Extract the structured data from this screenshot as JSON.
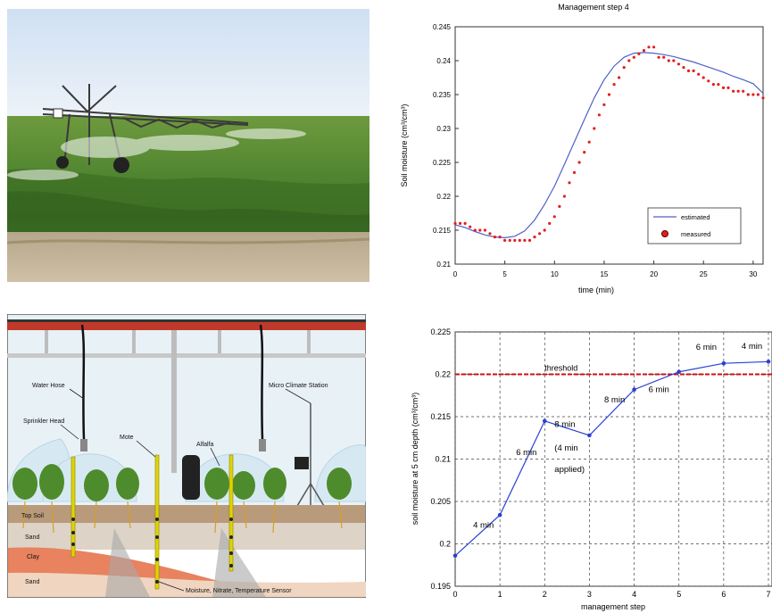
{
  "colors": {
    "estimated_line": "#5060c8",
    "measured_dot": "#e02020",
    "bottom_line": "#2a3fd6",
    "threshold": "#d01010",
    "pipe": "#c0392b",
    "sensor": "#e0d400"
  },
  "photo": {
    "icons": [
      "sky",
      "field-crop",
      "center-pivot-irrigation-machine",
      "water-spray",
      "dirt-ground"
    ]
  },
  "diagram": {
    "labels": {
      "water_hose": "Water Hose",
      "sprinkler_head": "Sprinkler Head",
      "mote": "Mote",
      "alfalfa": "Alfalfa",
      "micro_climate_station": "Micro Climate Station",
      "top_soil": "Top Soil",
      "sand_upper": "Sand",
      "clay": "Clay",
      "sand_lower": "Sand",
      "sensor": "Moisture, Nitrate, Temperature Sensor"
    }
  },
  "chart_data": [
    {
      "type": "scatter",
      "title": "Management step 4",
      "xlabel": "time (min)",
      "ylabel": "Soil moisture (cm³/cm³)",
      "xlim": [
        0,
        31
      ],
      "ylim": [
        0.21,
        0.245
      ],
      "xticks": [
        0,
        5,
        10,
        15,
        20,
        25,
        30
      ],
      "yticks": [
        0.21,
        0.215,
        0.22,
        0.225,
        0.23,
        0.235,
        0.24,
        0.245
      ],
      "grid": false,
      "legend_position": "bottom-right",
      "series": [
        {
          "name": "estimated",
          "kind": "line",
          "x": [
            0,
            1,
            2,
            3,
            4,
            5,
            6,
            7,
            8,
            9,
            10,
            11,
            12,
            13,
            14,
            15,
            16,
            17,
            18,
            19,
            20,
            21,
            22,
            23,
            24,
            25,
            26,
            27,
            28,
            29,
            30,
            31
          ],
          "y": [
            0.2158,
            0.2154,
            0.2148,
            0.2143,
            0.214,
            0.2139,
            0.2141,
            0.2149,
            0.2165,
            0.2188,
            0.2215,
            0.2247,
            0.228,
            0.2313,
            0.2345,
            0.2372,
            0.2392,
            0.2405,
            0.2411,
            0.2412,
            0.2411,
            0.2409,
            0.2406,
            0.2402,
            0.2398,
            0.2393,
            0.2388,
            0.2383,
            0.2377,
            0.2372,
            0.2366,
            0.2352
          ]
        },
        {
          "name": "measured",
          "kind": "scatter",
          "x": [
            0,
            0.5,
            1,
            1.5,
            2,
            2.5,
            3,
            3.5,
            4,
            4.5,
            5,
            5.5,
            6,
            6.5,
            7,
            7.5,
            8,
            8.5,
            9,
            9.5,
            10,
            10.5,
            11,
            11.5,
            12,
            12.5,
            13,
            13.5,
            14,
            14.5,
            15,
            15.5,
            16,
            16.5,
            17,
            17.5,
            18,
            18.5,
            19,
            19.5,
            20,
            20.5,
            21,
            21.5,
            22,
            22.5,
            23,
            23.5,
            24,
            24.5,
            25,
            25.5,
            26,
            26.5,
            27,
            27.5,
            28,
            28.5,
            29,
            29.5,
            30,
            30.5,
            31
          ],
          "y": [
            0.216,
            0.216,
            0.216,
            0.2155,
            0.215,
            0.215,
            0.215,
            0.2145,
            0.214,
            0.214,
            0.2135,
            0.2135,
            0.2135,
            0.2135,
            0.2135,
            0.2135,
            0.214,
            0.2145,
            0.215,
            0.216,
            0.217,
            0.2185,
            0.22,
            0.222,
            0.2235,
            0.225,
            0.2265,
            0.228,
            0.23,
            0.232,
            0.2335,
            0.235,
            0.2365,
            0.2375,
            0.239,
            0.24,
            0.2405,
            0.241,
            0.2415,
            0.242,
            0.242,
            0.2405,
            0.2405,
            0.24,
            0.24,
            0.2395,
            0.239,
            0.2385,
            0.2385,
            0.238,
            0.2375,
            0.237,
            0.2365,
            0.2365,
            0.236,
            0.236,
            0.2355,
            0.2355,
            0.2355,
            0.235,
            0.235,
            0.235,
            0.2345
          ]
        }
      ]
    },
    {
      "type": "line",
      "title": "",
      "xlabel": "management step",
      "ylabel": "soil moisture at 5 cm depth (cm³/cm³)",
      "xlim": [
        0,
        7
      ],
      "ylim": [
        0.195,
        0.225
      ],
      "xticks": [
        0,
        1,
        2,
        3,
        4,
        5,
        6,
        7
      ],
      "yticks": [
        0.195,
        0.2,
        0.205,
        0.21,
        0.215,
        0.22,
        0.225
      ],
      "grid": true,
      "series": [
        {
          "name": "",
          "x": [
            0,
            1,
            2,
            3,
            4,
            5,
            6,
            7
          ],
          "y": [
            0.1986,
            0.2034,
            0.2145,
            0.2128,
            0.2182,
            0.2203,
            0.2213,
            0.2215
          ]
        }
      ],
      "threshold": {
        "value": 0.22,
        "label": "threshold"
      },
      "annotations": [
        {
          "text": "4 min",
          "x": 0.4,
          "y": 0.2019
        },
        {
          "text": "6 min",
          "x": 1.36,
          "y": 0.2105
        },
        {
          "text": "8 min",
          "x": 2.22,
          "y": 0.2138
        },
        {
          "text": "(4 min",
          "x": 2.22,
          "y": 0.211
        },
        {
          "text": "applied)",
          "x": 2.22,
          "y": 0.2085
        },
        {
          "text": "8 min",
          "x": 3.33,
          "y": 0.2167
        },
        {
          "text": "6 min",
          "x": 4.32,
          "y": 0.2179
        },
        {
          "text": "6 min",
          "x": 5.38,
          "y": 0.2229
        },
        {
          "text": "4 min",
          "x": 6.4,
          "y": 0.223
        }
      ]
    }
  ]
}
